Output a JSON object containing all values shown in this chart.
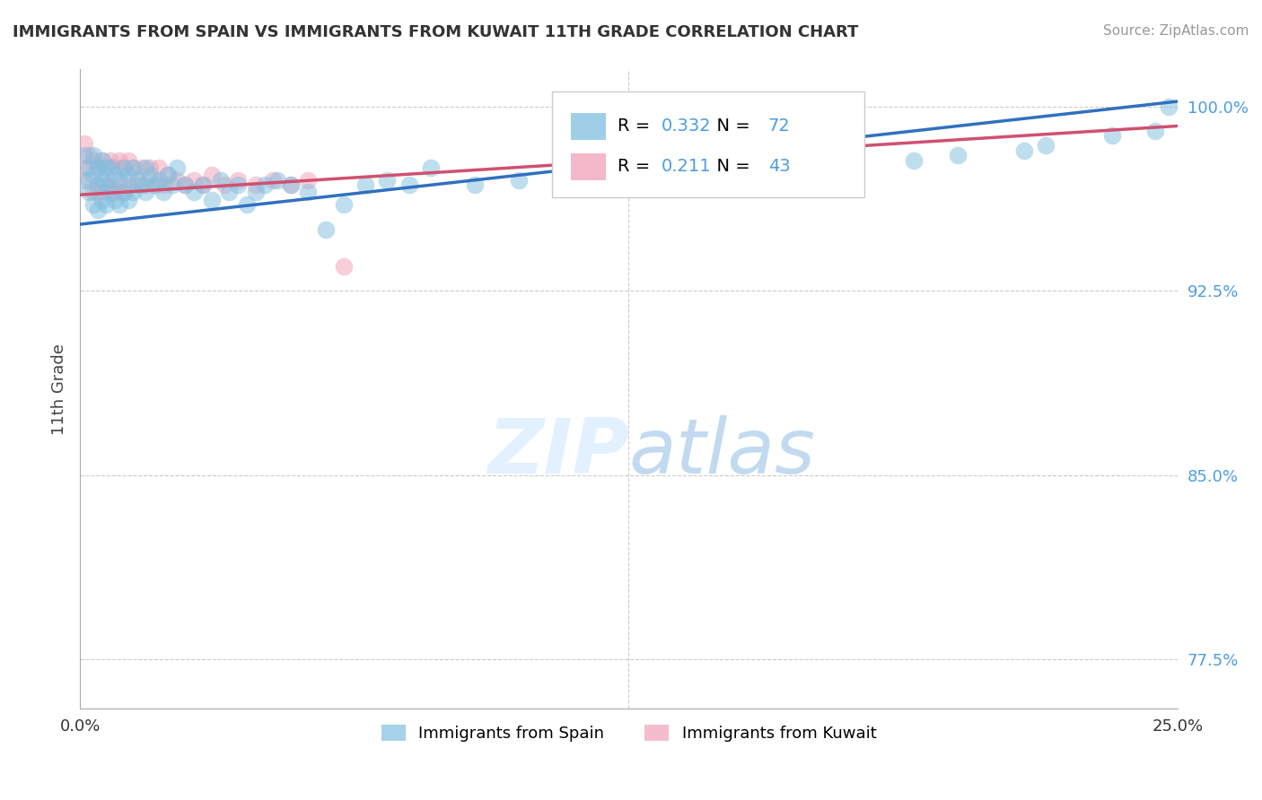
{
  "title": "IMMIGRANTS FROM SPAIN VS IMMIGRANTS FROM KUWAIT 11TH GRADE CORRELATION CHART",
  "source": "Source: ZipAtlas.com",
  "ylabel": "11th Grade",
  "R_spain": 0.332,
  "N_spain": 72,
  "R_kuwait": 0.211,
  "N_kuwait": 43,
  "color_spain": "#7fbfdf",
  "color_kuwait": "#f0a0b8",
  "line_color_spain": "#3070c0",
  "line_color_kuwait": "#d05070",
  "legend_spain": "Immigrants from Spain",
  "legend_kuwait": "Immigrants from Kuwait",
  "spain_x": [
    0.001,
    0.001,
    0.002,
    0.002,
    0.003,
    0.003,
    0.003,
    0.004,
    0.004,
    0.004,
    0.005,
    0.005,
    0.005,
    0.006,
    0.006,
    0.006,
    0.007,
    0.007,
    0.008,
    0.008,
    0.009,
    0.009,
    0.01,
    0.01,
    0.011,
    0.011,
    0.012,
    0.012,
    0.013,
    0.014,
    0.015,
    0.015,
    0.016,
    0.017,
    0.018,
    0.019,
    0.02,
    0.021,
    0.022,
    0.024,
    0.026,
    0.028,
    0.03,
    0.032,
    0.034,
    0.036,
    0.038,
    0.04,
    0.042,
    0.045,
    0.048,
    0.052,
    0.056,
    0.06,
    0.065,
    0.07,
    0.075,
    0.08,
    0.09,
    0.1,
    0.11,
    0.12,
    0.13,
    0.15,
    0.17,
    0.19,
    0.2,
    0.215,
    0.22,
    0.235,
    0.245,
    0.248
  ],
  "spain_y": [
    0.98,
    0.97,
    0.975,
    0.965,
    0.98,
    0.972,
    0.96,
    0.975,
    0.968,
    0.958,
    0.978,
    0.97,
    0.962,
    0.975,
    0.968,
    0.96,
    0.975,
    0.965,
    0.972,
    0.962,
    0.97,
    0.96,
    0.975,
    0.965,
    0.972,
    0.962,
    0.975,
    0.965,
    0.97,
    0.968,
    0.975,
    0.965,
    0.972,
    0.968,
    0.97,
    0.965,
    0.972,
    0.968,
    0.975,
    0.968,
    0.965,
    0.968,
    0.962,
    0.97,
    0.965,
    0.968,
    0.96,
    0.965,
    0.968,
    0.97,
    0.968,
    0.965,
    0.95,
    0.96,
    0.968,
    0.97,
    0.968,
    0.975,
    0.968,
    0.97,
    0.968,
    0.975,
    0.97,
    0.975,
    0.972,
    0.978,
    0.98,
    0.982,
    0.984,
    0.988,
    0.99,
    1.0
  ],
  "kuwait_x": [
    0.001,
    0.001,
    0.002,
    0.002,
    0.003,
    0.003,
    0.004,
    0.004,
    0.005,
    0.005,
    0.006,
    0.006,
    0.007,
    0.007,
    0.008,
    0.008,
    0.009,
    0.009,
    0.01,
    0.01,
    0.011,
    0.011,
    0.012,
    0.013,
    0.014,
    0.015,
    0.016,
    0.017,
    0.018,
    0.019,
    0.02,
    0.022,
    0.024,
    0.026,
    0.028,
    0.03,
    0.033,
    0.036,
    0.04,
    0.044,
    0.048,
    0.052,
    0.06
  ],
  "kuwait_y": [
    0.985,
    0.975,
    0.98,
    0.97,
    0.978,
    0.965,
    0.975,
    0.965,
    0.978,
    0.968,
    0.975,
    0.965,
    0.978,
    0.968,
    0.975,
    0.965,
    0.978,
    0.968,
    0.975,
    0.965,
    0.978,
    0.968,
    0.975,
    0.968,
    0.975,
    0.968,
    0.975,
    0.968,
    0.975,
    0.968,
    0.972,
    0.97,
    0.968,
    0.97,
    0.968,
    0.972,
    0.968,
    0.97,
    0.968,
    0.97,
    0.968,
    0.97,
    0.935
  ],
  "xlim": [
    0.0,
    0.25
  ],
  "ylim": [
    0.755,
    1.015
  ],
  "yticks": [
    0.775,
    0.85,
    0.925,
    1.0
  ],
  "ytick_labels": [
    "77.5%",
    "85.0%",
    "92.5%",
    "100.0%"
  ],
  "xtick_labels": [
    "0.0%",
    "25.0%"
  ],
  "tick_color": "#4d9de0",
  "grid_color": "#cccccc"
}
